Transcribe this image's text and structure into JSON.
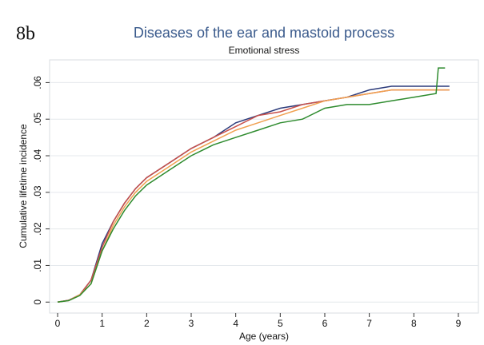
{
  "chart_data": {
    "type": "line",
    "panel_label": "8b",
    "title": "Diseases of the ear and mastoid process",
    "subtitle": "Emotional stress",
    "xlabel": "Age (years)",
    "ylabel": "Cumulative lifetime incidence",
    "x": [
      0,
      0.25,
      0.5,
      0.75,
      1,
      1.25,
      1.5,
      1.75,
      2,
      2.5,
      3,
      3.5,
      4,
      4.5,
      5,
      5.5,
      6,
      6.5,
      7,
      7.5,
      8,
      8.5,
      8.55,
      8.7,
      8.8
    ],
    "series": [
      {
        "color": "#2b3a7a",
        "values": [
          0,
          0.0005,
          0.002,
          0.006,
          0.016,
          0.022,
          0.027,
          0.031,
          0.034,
          0.038,
          0.042,
          0.045,
          0.049,
          0.051,
          0.053,
          0.054,
          0.055,
          0.056,
          0.058,
          0.059,
          0.059,
          0.059,
          0.059,
          0.059,
          0.059
        ]
      },
      {
        "color": "#c8504a",
        "values": [
          0,
          0.0005,
          0.002,
          0.006,
          0.015,
          0.022,
          0.027,
          0.031,
          0.034,
          0.038,
          0.042,
          0.045,
          0.048,
          0.051,
          0.052,
          0.054,
          0.055,
          0.056,
          0.057,
          0.058,
          0.058,
          0.058,
          0.058,
          0.058,
          0.058
        ]
      },
      {
        "color": "#f0a050",
        "values": [
          0,
          0.0004,
          0.002,
          0.005,
          0.014,
          0.021,
          0.026,
          0.03,
          0.033,
          0.037,
          0.041,
          0.044,
          0.047,
          0.049,
          0.051,
          0.053,
          0.055,
          0.056,
          0.057,
          0.058,
          0.058,
          0.058,
          0.058,
          0.058,
          0.058
        ]
      },
      {
        "color": "#2e8b2e",
        "values": [
          0,
          0.0004,
          0.0018,
          0.005,
          0.014,
          0.02,
          0.025,
          0.029,
          0.032,
          0.036,
          0.04,
          0.043,
          0.045,
          0.047,
          0.049,
          0.05,
          0.053,
          0.054,
          0.054,
          0.055,
          0.056,
          0.057,
          0.064,
          0.064,
          null
        ]
      }
    ],
    "xlim": [
      -0.18,
      9.45
    ],
    "xticks": [
      0,
      1,
      2,
      3,
      4,
      5,
      6,
      7,
      8,
      9
    ],
    "ylim": [
      -0.003,
      0.0662
    ],
    "yticks": [
      0,
      {
        "value": 0.01,
        "label": ".01"
      },
      {
        "value": 0.02,
        "label": ".02"
      },
      {
        "value": 0.03,
        "label": ".03"
      },
      {
        "value": 0.04,
        "label": ".04"
      },
      {
        "value": 0.05,
        "label": ".05"
      },
      {
        "value": 0.06,
        "label": ".06"
      }
    ],
    "grid": true
  }
}
